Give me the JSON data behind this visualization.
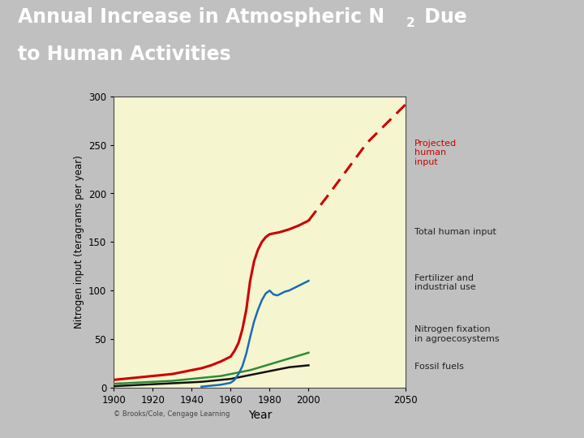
{
  "title_bg_color": "#3db535",
  "title_text_color": "#ffffff",
  "plot_bg_color": "#f5f5d0",
  "outer_bg_color": "#d0d0d0",
  "xlabel": "Year",
  "ylabel": "Nitrogen input (teragrams per year)",
  "xlim": [
    1900,
    2050
  ],
  "ylim": [
    0,
    300
  ],
  "xticks": [
    1900,
    1920,
    1940,
    1960,
    1980,
    2000,
    2050
  ],
  "yticks": [
    0,
    50,
    100,
    150,
    200,
    250,
    300
  ],
  "series": {
    "fossil_fuels": {
      "color": "#111111",
      "years": [
        1900,
        1905,
        1910,
        1915,
        1920,
        1925,
        1930,
        1935,
        1940,
        1945,
        1950,
        1955,
        1960,
        1965,
        1970,
        1975,
        1980,
        1985,
        1990,
        1995,
        2000
      ],
      "values": [
        1.5,
        2,
        2.5,
        3,
        3.5,
        4,
        4.5,
        5,
        5.5,
        6,
        7,
        8,
        9,
        11,
        13,
        15,
        17,
        19,
        21,
        22,
        23
      ]
    },
    "nitrogen_fixation": {
      "color": "#2e8b35",
      "years": [
        1900,
        1905,
        1910,
        1915,
        1920,
        1925,
        1930,
        1935,
        1940,
        1945,
        1950,
        1955,
        1960,
        1965,
        1970,
        1975,
        1980,
        1985,
        1990,
        1995,
        2000
      ],
      "values": [
        4,
        4.5,
        5,
        5.5,
        6,
        6.5,
        7,
        8,
        9,
        10,
        11,
        12,
        14,
        16,
        18,
        21,
        24,
        27,
        30,
        33,
        36
      ]
    },
    "fertilizer": {
      "color": "#1a6bb5",
      "years": [
        1945,
        1950,
        1955,
        1960,
        1962,
        1964,
        1966,
        1968,
        1970,
        1972,
        1974,
        1976,
        1978,
        1980,
        1982,
        1984,
        1986,
        1988,
        1990,
        1995,
        2000
      ],
      "values": [
        1,
        2,
        3,
        5,
        8,
        14,
        22,
        35,
        52,
        68,
        80,
        90,
        97,
        100,
        96,
        95,
        97,
        99,
        100,
        105,
        110
      ]
    },
    "total_human": {
      "color": "#cc0000",
      "years": [
        1900,
        1905,
        1910,
        1915,
        1920,
        1925,
        1930,
        1935,
        1940,
        1945,
        1950,
        1955,
        1960,
        1962,
        1964,
        1966,
        1968,
        1970,
        1972,
        1974,
        1976,
        1978,
        1980,
        1985,
        1990,
        1995,
        2000
      ],
      "values": [
        8,
        9,
        10,
        11,
        12,
        13,
        14,
        16,
        18,
        20,
        23,
        27,
        32,
        38,
        46,
        60,
        80,
        110,
        130,
        142,
        150,
        155,
        158,
        160,
        163,
        167,
        172
      ]
    },
    "projected": {
      "color": "#cc0000",
      "years": [
        2000,
        2010,
        2020,
        2030,
        2040,
        2050
      ],
      "values": [
        172,
        198,
        225,
        252,
        272,
        292
      ]
    }
  },
  "bottom_border_color": "#3db535",
  "credit_text": "© Brooks/Cole, Cengage Learning"
}
